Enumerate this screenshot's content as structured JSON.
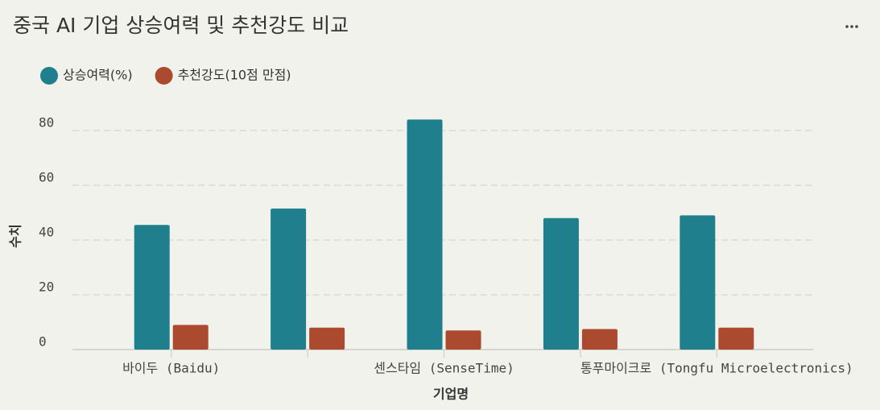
{
  "chart_data": {
    "type": "bar",
    "title": "중국 AI 기업 상승여력 및 추천강도 비교",
    "x_label": "기업명",
    "y_label": "수치",
    "categories": [
      "바이두 (Baidu)",
      null,
      "센스타임 (SenseTime)",
      null,
      "통푸마이크로 (Tongfu Microelectronics)"
    ],
    "series": [
      {
        "name": "상승여력(%)",
        "color": "#1f7f8c",
        "values": [
          45.5,
          51.5,
          84,
          48,
          49
        ]
      },
      {
        "name": "추천강도(10점 만점)",
        "color": "#ab4a2e",
        "values": [
          9,
          8,
          7,
          7.5,
          8
        ]
      }
    ],
    "ylim": [
      0,
      87
    ],
    "yticks": [
      0,
      20,
      40,
      60,
      80
    ],
    "grid": true,
    "legend": "top-left"
  }
}
